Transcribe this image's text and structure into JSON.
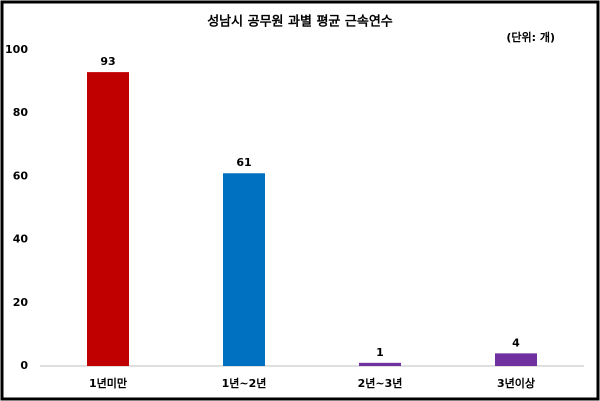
{
  "chart_data": {
    "type": "bar",
    "title": "성남시 공무원 과별 평균 근속연수",
    "annotation": "(단위: 개)",
    "categories": [
      "1년미만",
      "1년~2년",
      "2년~3년",
      "3년이상"
    ],
    "values": [
      93,
      61,
      1,
      4
    ],
    "colors": [
      "#c00000",
      "#0070c0",
      "#7030a0",
      "#7030a0"
    ],
    "ylim": [
      0,
      100
    ],
    "yticks": [
      0,
      20,
      40,
      60,
      80,
      100
    ],
    "grid": false
  }
}
